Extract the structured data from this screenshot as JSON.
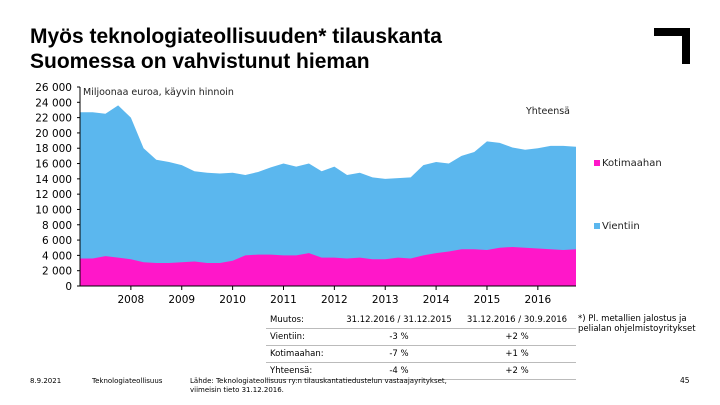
{
  "title_lines": [
    "Myös teknologiateollisuuden* tilauskanta",
    "Suomessa on vahvistunut hieman"
  ],
  "colors": {
    "export": "#5bb7ee",
    "domestic": "#ff17c9",
    "total_label_bg": "#ffffff",
    "logo": "#000000"
  },
  "chart_data": {
    "type": "area",
    "title": "Miljoonaa euroa, käyvin hinnoin",
    "stacked": true,
    "ylim": [
      0,
      26000
    ],
    "yticks": [
      "0",
      "2 000",
      "4 000",
      "6 000",
      "8 000",
      "10 000",
      "12 000",
      "14 000",
      "16 000",
      "18 000",
      "20 000",
      "22 000",
      "24 000",
      "26 000"
    ],
    "xticks": [
      "2008",
      "2009",
      "2010",
      "2011",
      "2012",
      "2013",
      "2014",
      "2015",
      "2016"
    ],
    "xrange": [
      2007.0,
      2016.75
    ],
    "x": [
      2007.0,
      2007.25,
      2007.5,
      2007.75,
      2008.0,
      2008.25,
      2008.5,
      2008.75,
      2009.0,
      2009.25,
      2009.5,
      2009.75,
      2010.0,
      2010.25,
      2010.5,
      2010.75,
      2011.0,
      2011.25,
      2011.5,
      2011.75,
      2012.0,
      2012.25,
      2012.5,
      2012.75,
      2013.0,
      2013.25,
      2013.5,
      2013.75,
      2014.0,
      2014.25,
      2014.5,
      2014.75,
      2015.0,
      2015.25,
      2015.5,
      2015.75,
      2016.0,
      2016.25,
      2016.5,
      2016.75
    ],
    "series": [
      {
        "name": "Kotimaahan",
        "values": [
          3600,
          3600,
          3900,
          3700,
          3500,
          3100,
          3000,
          3000,
          3100,
          3200,
          3000,
          3000,
          3300,
          4000,
          4100,
          4100,
          4000,
          4000,
          4300,
          3700,
          3700,
          3600,
          3700,
          3500,
          3500,
          3700,
          3600,
          4000,
          4300,
          4500,
          4800,
          4800,
          4700,
          5000,
          5100,
          5000,
          4900,
          4800,
          4700,
          4800
        ]
      },
      {
        "name": "Yhteensä",
        "values": [
          22700,
          22700,
          22500,
          23600,
          22000,
          18000,
          16500,
          16200,
          15800,
          15000,
          14800,
          14700,
          14800,
          14500,
          14900,
          15500,
          16000,
          15600,
          16000,
          15000,
          15600,
          14500,
          14800,
          14200,
          14000,
          14100,
          14200,
          15800,
          16200,
          16000,
          17000,
          17500,
          18900,
          18700,
          18100,
          17800,
          18000,
          18300,
          18300,
          18200
        ]
      }
    ],
    "annotations": [
      "Yhteensä"
    ],
    "legend": [
      "Kotimaahan",
      "Vientiin"
    ]
  },
  "summary_table": {
    "rows": [
      [
        "Muutos:",
        "31.12.2016 / 31.12.2015",
        "31.12.2016 / 30.9.2016"
      ],
      [
        "Vientiin:",
        "-3 %",
        "+2 %"
      ],
      [
        "Kotimaahan:",
        "-7 %",
        "+1 %"
      ],
      [
        "Yhteensä:",
        "-4 %",
        "+2 %"
      ]
    ]
  },
  "footnote": "*) Pl. metallien jalostus ja pelialan ohjelmistoyritykset",
  "footer": {
    "date": "8.9.2021",
    "org": "Teknologiateollisuus",
    "source": "Lähde: Teknologiateollisuus ry:n tilauskantatiedustelun vastaajayritykset,",
    "source2": "viimeisin tieto 31.12.2016.",
    "page": "45"
  }
}
